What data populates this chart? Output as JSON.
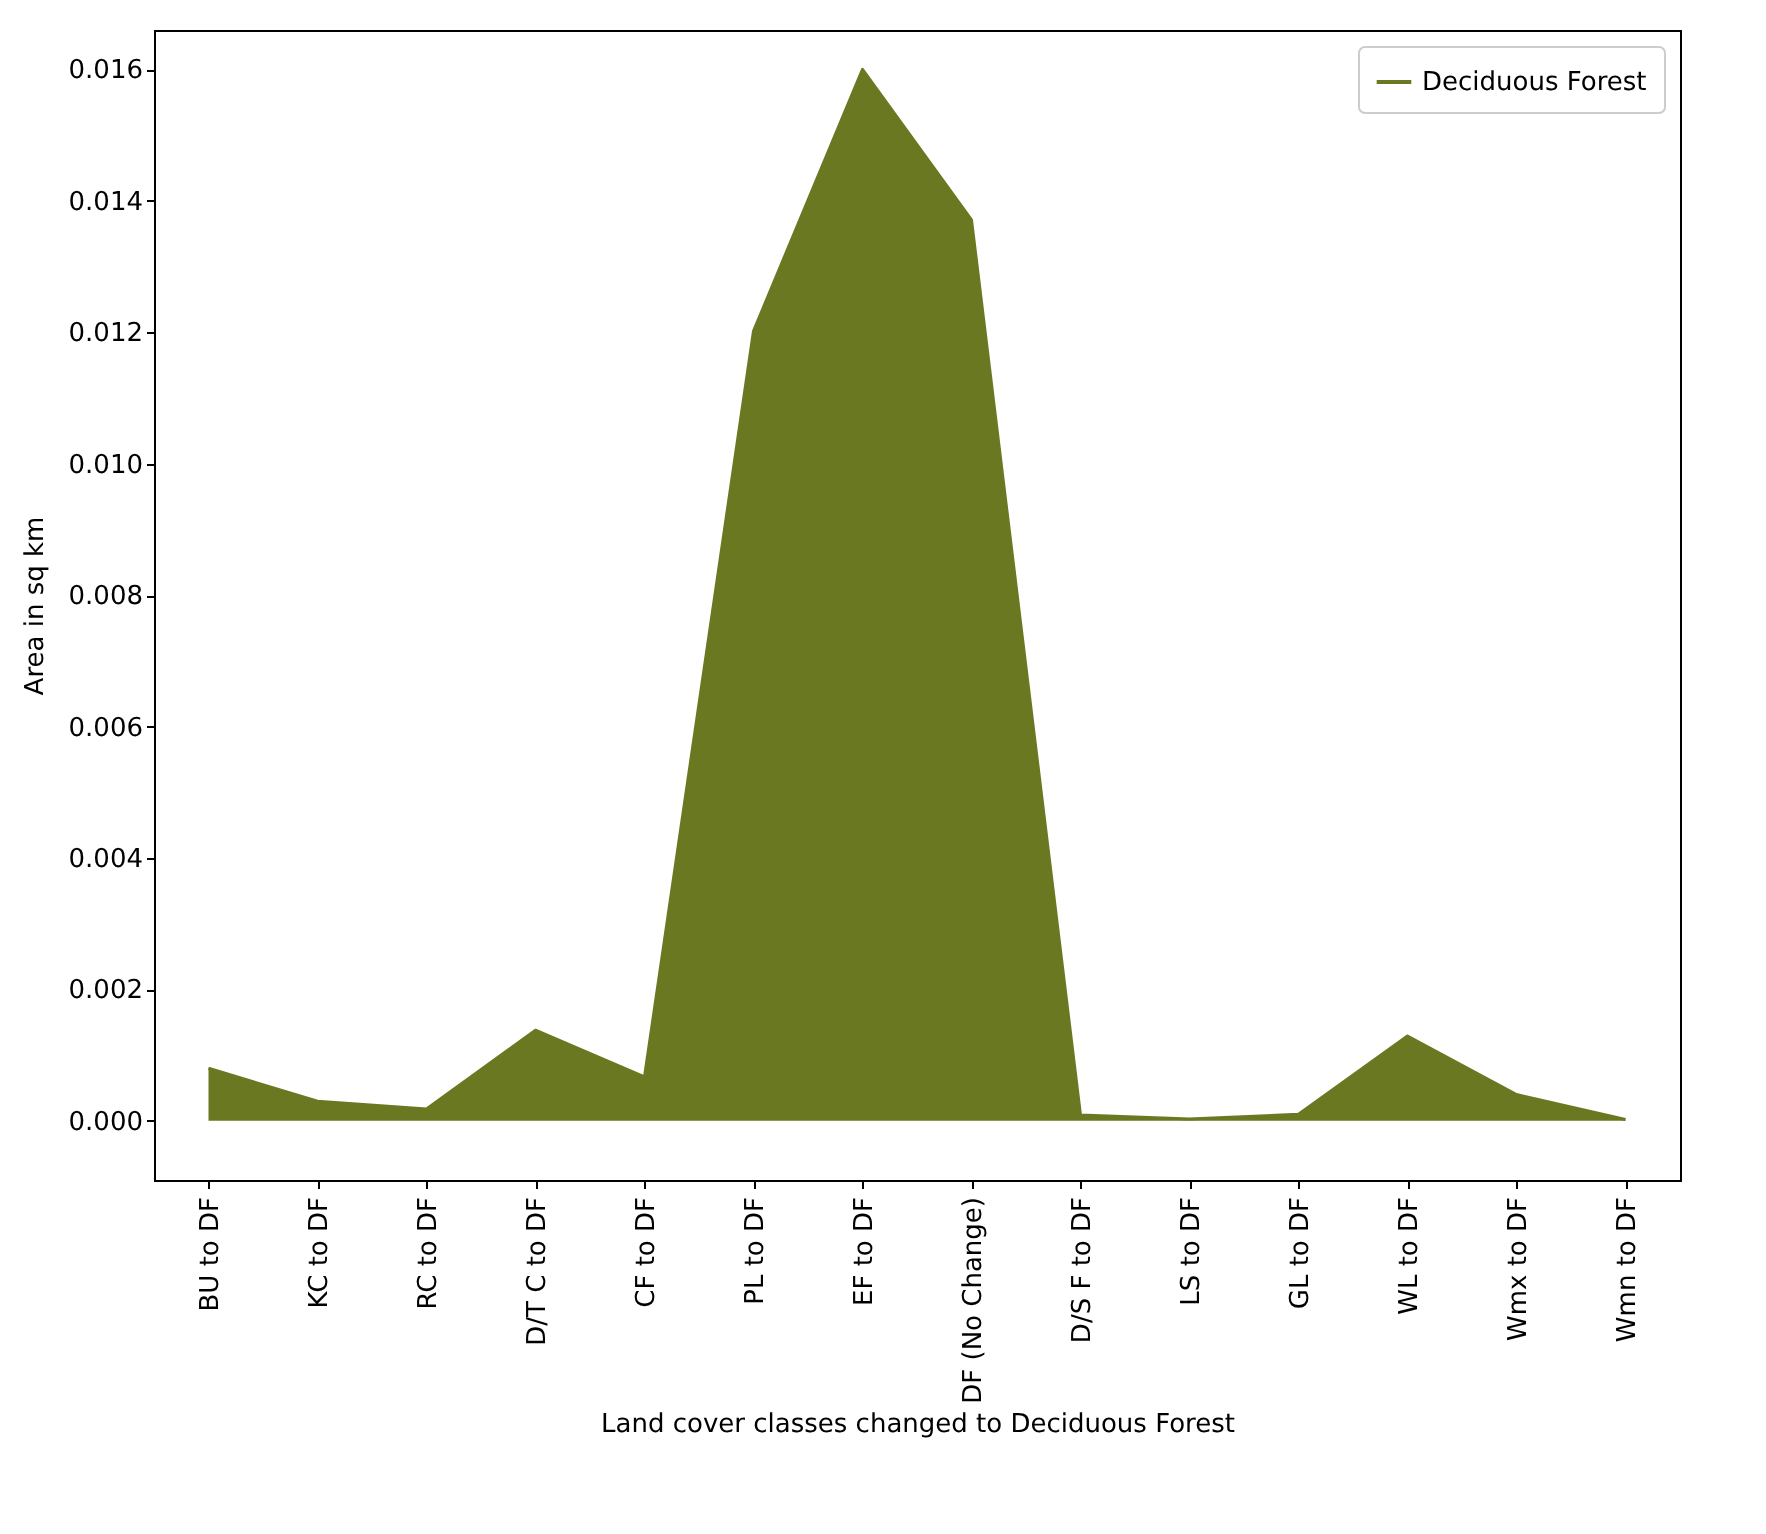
{
  "chart_data": {
    "type": "area",
    "xlabel": "Land cover classes changed to Deciduous Forest",
    "ylabel": "Area in sq km",
    "categories": [
      "BU to DF",
      "KC to DF",
      "RC to DF",
      "D/T C to DF",
      "CF to DF",
      "PL to DF",
      "EF to DF",
      "DF (No Change)",
      "D/S F to DF",
      "LS to DF",
      "GL to DF",
      "WL to DF",
      "Wmx to DF",
      "Wmn to DF"
    ],
    "series": [
      {
        "name": "Deciduous Forest",
        "color": "#6b7822",
        "values": [
          0.0008,
          0.0003,
          0.00018,
          0.00138,
          0.00067,
          0.01202,
          0.016,
          0.01371,
          9e-05,
          3e-05,
          0.0001,
          0.00129,
          0.0004,
          2e-05
        ]
      }
    ],
    "ylim": [
      -0.0009,
      0.0166
    ],
    "yticks": [
      {
        "value": 0,
        "label": "0.000"
      },
      {
        "value": 0.002,
        "label": "0.002"
      },
      {
        "value": 0.004,
        "label": "0.004"
      },
      {
        "value": 0.006,
        "label": "0.006"
      },
      {
        "value": 0.008,
        "label": "0.008"
      },
      {
        "value": 0.01,
        "label": "0.010"
      },
      {
        "value": 0.012,
        "label": "0.012"
      },
      {
        "value": 0.014,
        "label": "0.014"
      },
      {
        "value": 0.016,
        "label": "0.016"
      }
    ],
    "grid": false,
    "legend": "top right"
  }
}
